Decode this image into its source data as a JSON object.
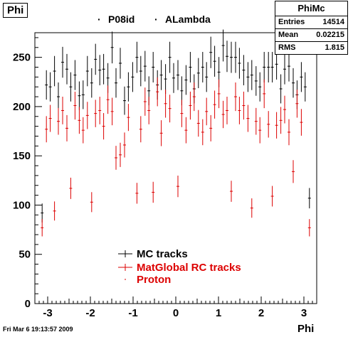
{
  "window_title": "Phi",
  "stats": {
    "title": "PhiMc",
    "rows": [
      {
        "label": "Entries",
        "value": "14514"
      },
      {
        "label": "Mean",
        "value": "0.02215"
      },
      {
        "label": "RMS",
        "value": "1.815"
      }
    ]
  },
  "header": {
    "production": "P08id",
    "particle": "ALambda"
  },
  "footer": {
    "date": "Fri Mar  6 19:13:57 2009"
  },
  "chart_data": {
    "type": "scatter",
    "xlabel": "Phi",
    "ylabel": "",
    "xlim": [
      -3.3,
      3.3
    ],
    "ylim": [
      0,
      275
    ],
    "x_ticks": [
      -3,
      -2,
      -1,
      0,
      1,
      2,
      3
    ],
    "y_ticks": [
      0,
      50,
      100,
      150,
      200,
      250
    ],
    "grid": false,
    "legend_position": "bottom-center",
    "x": [
      -3.13,
      -3.03,
      -2.94,
      -2.84,
      -2.75,
      -2.65,
      -2.55,
      -2.46,
      -2.36,
      -2.26,
      -2.17,
      -2.07,
      -1.97,
      -1.88,
      -1.78,
      -1.69,
      -1.59,
      -1.49,
      -1.4,
      -1.3,
      -1.2,
      -1.11,
      -1.01,
      -0.91,
      -0.82,
      -0.72,
      -0.63,
      -0.53,
      -0.43,
      -0.34,
      -0.24,
      -0.14,
      -0.05,
      0.05,
      0.14,
      0.24,
      0.34,
      0.43,
      0.53,
      0.63,
      0.72,
      0.82,
      0.91,
      1.01,
      1.11,
      1.2,
      1.3,
      1.4,
      1.49,
      1.59,
      1.69,
      1.78,
      1.88,
      1.97,
      2.07,
      2.17,
      2.26,
      2.36,
      2.46,
      2.55,
      2.65,
      2.75,
      2.84,
      2.94,
      3.03,
      3.13
    ],
    "series": [
      {
        "name": "MC tracks",
        "color": "#000000",
        "values": [
          92,
          222,
          220,
          236,
          210,
          245,
          238,
          220,
          232,
          211,
          212,
          236,
          224,
          248,
          237,
          238,
          229,
          260,
          224,
          244,
          206,
          220,
          230,
          250,
          236,
          241,
          216,
          240,
          222,
          232,
          228,
          250,
          229,
          232,
          216,
          227,
          240,
          218,
          234,
          240,
          230,
          255,
          246,
          235,
          262,
          251,
          250,
          250,
          244,
          237,
          230,
          232,
          226,
          220,
          240,
          240,
          240,
          243,
          218,
          238,
          241,
          224,
          212,
          230,
          220,
          107
        ]
      },
      {
        "name": "MatGlobal RC tracks",
        "color": "#dd0000",
        "values": [
          77,
          177,
          188,
          94,
          185,
          196,
          178,
          117,
          201,
          186,
          176,
          191,
          103,
          193,
          196,
          180,
          207,
          195,
          148,
          151,
          161,
          189,
          112,
          177,
          205,
          196,
          113,
          215,
          173,
          203,
          198,
          119,
          193,
          176,
          201,
          210,
          183,
          174,
          195,
          178,
          202,
          213,
          192,
          196,
          114,
          210,
          196,
          201,
          188,
          97,
          185,
          176,
          213,
          182,
          109,
          181,
          186,
          197,
          174,
          134,
          203,
          184,
          77
        ]
      }
    ],
    "red_x": [
      -3.13,
      -3.03,
      -2.94,
      -2.84,
      -2.75,
      -2.65,
      -2.55,
      -2.46,
      -2.36,
      -2.26,
      -2.17,
      -2.07,
      -1.97,
      -1.88,
      -1.78,
      -1.69,
      -1.59,
      -1.49,
      -1.4,
      -1.3,
      -1.2,
      -1.11,
      -0.91,
      -0.82,
      -0.72,
      -0.63,
      -0.53,
      -0.43,
      -0.34,
      -0.24,
      -0.14,
      0.05,
      0.14,
      0.24,
      0.34,
      0.43,
      0.53,
      0.63,
      0.72,
      0.82,
      0.91,
      1.01,
      1.11,
      1.2,
      1.3,
      1.4,
      1.49,
      1.59,
      1.69,
      1.78,
      1.88,
      1.97,
      2.07,
      2.17,
      2.26,
      2.36,
      2.46,
      2.55,
      2.65,
      2.75,
      2.84,
      2.94,
      3.13
    ],
    "legend": [
      {
        "label": "MC tracks",
        "color": "#000000"
      },
      {
        "label": "MatGlobal RC tracks",
        "color": "#dd0000"
      },
      {
        "label": "Proton",
        "color": "#dd0000"
      }
    ]
  }
}
